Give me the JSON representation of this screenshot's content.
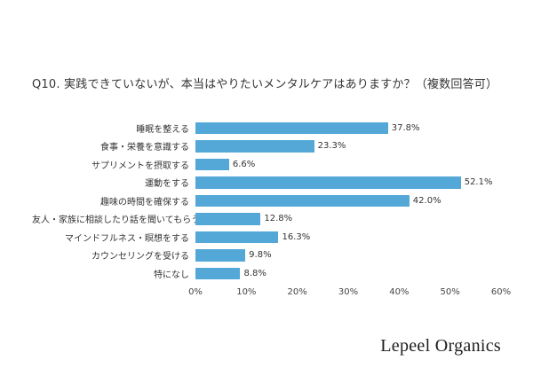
{
  "page": {
    "title": "Q10. 実践できていないが、本当はやりたいメンタルケアはありますか？（複数回答可）",
    "footer_logo": "Lepeel Organics"
  },
  "chart_data": {
    "type": "bar",
    "orientation": "horizontal",
    "title": "Q10. 実践できていないが、本当はやりたいメンタルケアはありますか？（複数回答可）",
    "categories": [
      "睡眠を整える",
      "食事・栄養を意識する",
      "サプリメントを摂取する",
      "運動をする",
      "趣味の時間を確保する",
      "友人・家族に相談したり話を聞いてもらう",
      "マインドフルネス・瞑想をする",
      "カウンセリングを受ける",
      "特になし"
    ],
    "values": [
      37.8,
      23.3,
      6.6,
      52.1,
      42.0,
      12.8,
      16.3,
      9.8,
      8.8
    ],
    "value_labels": [
      "37.8%",
      "23.3%",
      "6.6%",
      "52.1%",
      "42.0%",
      "12.8%",
      "16.3%",
      "9.8%",
      "8.8%"
    ],
    "xlim": [
      0,
      60
    ],
    "x_ticks": [
      "0%",
      "10%",
      "20%",
      "30%",
      "40%",
      "50%",
      "60%"
    ],
    "bar_color": "#54a8d8",
    "grid": false,
    "legend": false
  }
}
